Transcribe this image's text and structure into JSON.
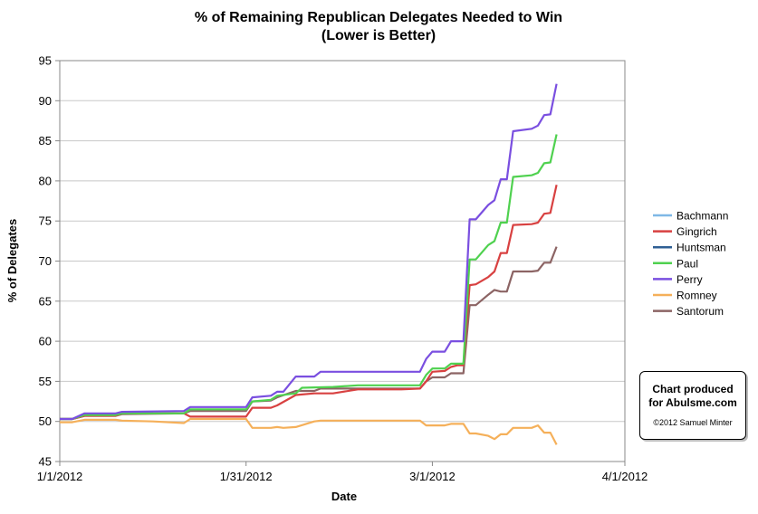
{
  "chart_data": {
    "type": "line",
    "title": "% of Remaining Republican Delegates Needed to Win",
    "subtitle": "(Lower is Better)",
    "xlabel": "Date",
    "ylabel": "% of Delegates",
    "ylim": [
      45,
      95
    ],
    "yticks": [
      "45",
      "50",
      "55",
      "60",
      "65",
      "70",
      "75",
      "80",
      "85",
      "90",
      "95"
    ],
    "xlim": [
      "2012-01-01",
      "2012-04-01"
    ],
    "xticks": [
      "1/1/2012",
      "1/31/2012",
      "3/1/2012",
      "4/1/2012"
    ],
    "grid": "horizontal",
    "legend_position": "right",
    "series": [
      {
        "name": "Bachmann",
        "color": "#7fb8e6",
        "points": [
          [
            "2012-01-01",
            50.3
          ],
          [
            "2012-01-03",
            50.3
          ]
        ]
      },
      {
        "name": "Gingrich",
        "color": "#d84141",
        "points": [
          [
            "2012-01-01",
            50.3
          ],
          [
            "2012-01-03",
            50.3
          ],
          [
            "2012-01-05",
            50.7
          ],
          [
            "2012-01-10",
            50.7
          ],
          [
            "2012-01-11",
            51.0
          ],
          [
            "2012-01-21",
            51.0
          ],
          [
            "2012-01-22",
            50.6
          ],
          [
            "2012-01-31",
            50.6
          ],
          [
            "2012-02-01",
            51.7
          ],
          [
            "2012-02-04",
            51.7
          ],
          [
            "2012-02-05",
            52.0
          ],
          [
            "2012-02-08",
            53.3
          ],
          [
            "2012-02-11",
            53.5
          ],
          [
            "2012-02-14",
            53.5
          ],
          [
            "2012-02-18",
            54.0
          ],
          [
            "2012-02-25",
            54.0
          ],
          [
            "2012-02-28",
            54.1
          ],
          [
            "2012-02-29",
            55.0
          ],
          [
            "2012-03-01",
            56.2
          ],
          [
            "2012-03-03",
            56.3
          ],
          [
            "2012-03-04",
            56.8
          ],
          [
            "2012-03-05",
            57.0
          ],
          [
            "2012-03-06",
            57.0
          ],
          [
            "2012-03-07",
            67.0
          ],
          [
            "2012-03-08",
            67.1
          ],
          [
            "2012-03-10",
            68.0
          ],
          [
            "2012-03-11",
            68.7
          ],
          [
            "2012-03-12",
            71.0
          ],
          [
            "2012-03-13",
            71.0
          ],
          [
            "2012-03-14",
            74.5
          ],
          [
            "2012-03-17",
            74.6
          ],
          [
            "2012-03-18",
            74.8
          ],
          [
            "2012-03-19",
            75.9
          ],
          [
            "2012-03-20",
            76.0
          ],
          [
            "2012-03-21",
            79.5
          ]
        ]
      },
      {
        "name": "Huntsman",
        "color": "#2f5f94",
        "points": [
          [
            "2012-01-01",
            50.3
          ],
          [
            "2012-01-03",
            50.3
          ],
          [
            "2012-01-05",
            50.9
          ],
          [
            "2012-01-10",
            50.9
          ],
          [
            "2012-01-11",
            51.0
          ],
          [
            "2012-01-16",
            51.0
          ]
        ]
      },
      {
        "name": "Paul",
        "color": "#4fd14f",
        "points": [
          [
            "2012-01-01",
            50.3
          ],
          [
            "2012-01-03",
            50.3
          ],
          [
            "2012-01-05",
            50.8
          ],
          [
            "2012-01-10",
            50.8
          ],
          [
            "2012-01-11",
            51.0
          ],
          [
            "2012-01-21",
            51.0
          ],
          [
            "2012-01-22",
            51.5
          ],
          [
            "2012-01-31",
            51.5
          ],
          [
            "2012-02-01",
            52.5
          ],
          [
            "2012-02-04",
            52.7
          ],
          [
            "2012-02-05",
            53.2
          ],
          [
            "2012-02-08",
            53.5
          ],
          [
            "2012-02-09",
            54.2
          ],
          [
            "2012-02-14",
            54.3
          ],
          [
            "2012-02-18",
            54.5
          ],
          [
            "2012-02-28",
            54.5
          ],
          [
            "2012-02-29",
            55.8
          ],
          [
            "2012-03-01",
            56.6
          ],
          [
            "2012-03-03",
            56.6
          ],
          [
            "2012-03-04",
            57.2
          ],
          [
            "2012-03-06",
            57.2
          ],
          [
            "2012-03-07",
            70.2
          ],
          [
            "2012-03-08",
            70.2
          ],
          [
            "2012-03-10",
            72.0
          ],
          [
            "2012-03-11",
            72.5
          ],
          [
            "2012-03-12",
            74.8
          ],
          [
            "2012-03-13",
            74.8
          ],
          [
            "2012-03-14",
            80.5
          ],
          [
            "2012-03-17",
            80.7
          ],
          [
            "2012-03-18",
            81.0
          ],
          [
            "2012-03-19",
            82.2
          ],
          [
            "2012-03-20",
            82.3
          ],
          [
            "2012-03-21",
            85.8
          ]
        ]
      },
      {
        "name": "Perry",
        "color": "#7a4fe0",
        "points": [
          [
            "2012-01-01",
            50.3
          ],
          [
            "2012-01-03",
            50.3
          ],
          [
            "2012-01-05",
            51.0
          ],
          [
            "2012-01-10",
            51.0
          ],
          [
            "2012-01-11",
            51.2
          ],
          [
            "2012-01-21",
            51.3
          ],
          [
            "2012-01-22",
            51.8
          ],
          [
            "2012-01-31",
            51.8
          ],
          [
            "2012-02-01",
            53.0
          ],
          [
            "2012-02-04",
            53.2
          ],
          [
            "2012-02-05",
            53.7
          ],
          [
            "2012-02-06",
            53.7
          ],
          [
            "2012-02-08",
            55.6
          ],
          [
            "2012-02-11",
            55.6
          ],
          [
            "2012-02-12",
            56.2
          ],
          [
            "2012-02-28",
            56.2
          ],
          [
            "2012-02-29",
            57.8
          ],
          [
            "2012-03-01",
            58.7
          ],
          [
            "2012-03-03",
            58.7
          ],
          [
            "2012-03-04",
            60.0
          ],
          [
            "2012-03-06",
            60.0
          ],
          [
            "2012-03-07",
            75.2
          ],
          [
            "2012-03-08",
            75.2
          ],
          [
            "2012-03-10",
            77.0
          ],
          [
            "2012-03-11",
            77.6
          ],
          [
            "2012-03-12",
            80.2
          ],
          [
            "2012-03-13",
            80.2
          ],
          [
            "2012-03-14",
            86.2
          ],
          [
            "2012-03-17",
            86.5
          ],
          [
            "2012-03-18",
            86.9
          ],
          [
            "2012-03-19",
            88.2
          ],
          [
            "2012-03-20",
            88.3
          ],
          [
            "2012-03-21",
            92.1
          ]
        ]
      },
      {
        "name": "Romney",
        "color": "#f5b05a",
        "points": [
          [
            "2012-01-01",
            49.9
          ],
          [
            "2012-01-03",
            49.9
          ],
          [
            "2012-01-05",
            50.2
          ],
          [
            "2012-01-10",
            50.2
          ],
          [
            "2012-01-11",
            50.1
          ],
          [
            "2012-01-16",
            50.0
          ],
          [
            "2012-01-21",
            49.8
          ],
          [
            "2012-01-22",
            50.3
          ],
          [
            "2012-01-31",
            50.3
          ],
          [
            "2012-02-01",
            49.2
          ],
          [
            "2012-02-04",
            49.2
          ],
          [
            "2012-02-05",
            49.3
          ],
          [
            "2012-02-06",
            49.2
          ],
          [
            "2012-02-08",
            49.3
          ],
          [
            "2012-02-11",
            50.0
          ],
          [
            "2012-02-12",
            50.1
          ],
          [
            "2012-02-28",
            50.1
          ],
          [
            "2012-02-29",
            49.5
          ],
          [
            "2012-03-01",
            49.5
          ],
          [
            "2012-03-03",
            49.5
          ],
          [
            "2012-03-04",
            49.7
          ],
          [
            "2012-03-06",
            49.7
          ],
          [
            "2012-03-07",
            48.5
          ],
          [
            "2012-03-08",
            48.5
          ],
          [
            "2012-03-10",
            48.2
          ],
          [
            "2012-03-11",
            47.8
          ],
          [
            "2012-03-12",
            48.4
          ],
          [
            "2012-03-13",
            48.4
          ],
          [
            "2012-03-14",
            49.2
          ],
          [
            "2012-03-17",
            49.2
          ],
          [
            "2012-03-18",
            49.5
          ],
          [
            "2012-03-19",
            48.6
          ],
          [
            "2012-03-20",
            48.6
          ],
          [
            "2012-03-21",
            47.1
          ]
        ]
      },
      {
        "name": "Santorum",
        "color": "#8c6464",
        "points": [
          [
            "2012-01-01",
            50.3
          ],
          [
            "2012-01-03",
            50.3
          ],
          [
            "2012-01-05",
            50.7
          ],
          [
            "2012-01-10",
            50.7
          ],
          [
            "2012-01-11",
            50.9
          ],
          [
            "2012-01-21",
            51.0
          ],
          [
            "2012-01-22",
            51.3
          ],
          [
            "2012-01-31",
            51.3
          ],
          [
            "2012-02-01",
            52.5
          ],
          [
            "2012-02-04",
            52.6
          ],
          [
            "2012-02-05",
            53.0
          ],
          [
            "2012-02-08",
            53.8
          ],
          [
            "2012-02-11",
            53.8
          ],
          [
            "2012-02-12",
            54.1
          ],
          [
            "2012-02-28",
            54.1
          ],
          [
            "2012-02-29",
            55.0
          ],
          [
            "2012-03-01",
            55.5
          ],
          [
            "2012-03-03",
            55.5
          ],
          [
            "2012-03-04",
            56.0
          ],
          [
            "2012-03-06",
            56.0
          ],
          [
            "2012-03-07",
            64.5
          ],
          [
            "2012-03-08",
            64.5
          ],
          [
            "2012-03-10",
            65.8
          ],
          [
            "2012-03-11",
            66.4
          ],
          [
            "2012-03-12",
            66.2
          ],
          [
            "2012-03-13",
            66.2
          ],
          [
            "2012-03-14",
            68.7
          ],
          [
            "2012-03-17",
            68.7
          ],
          [
            "2012-03-18",
            68.8
          ],
          [
            "2012-03-19",
            69.8
          ],
          [
            "2012-03-20",
            69.8
          ],
          [
            "2012-03-21",
            71.8
          ]
        ]
      }
    ]
  },
  "credit": {
    "line1": "Chart produced",
    "line2": "for Abulsme.com",
    "copyright": "©2012 Samuel Minter"
  }
}
